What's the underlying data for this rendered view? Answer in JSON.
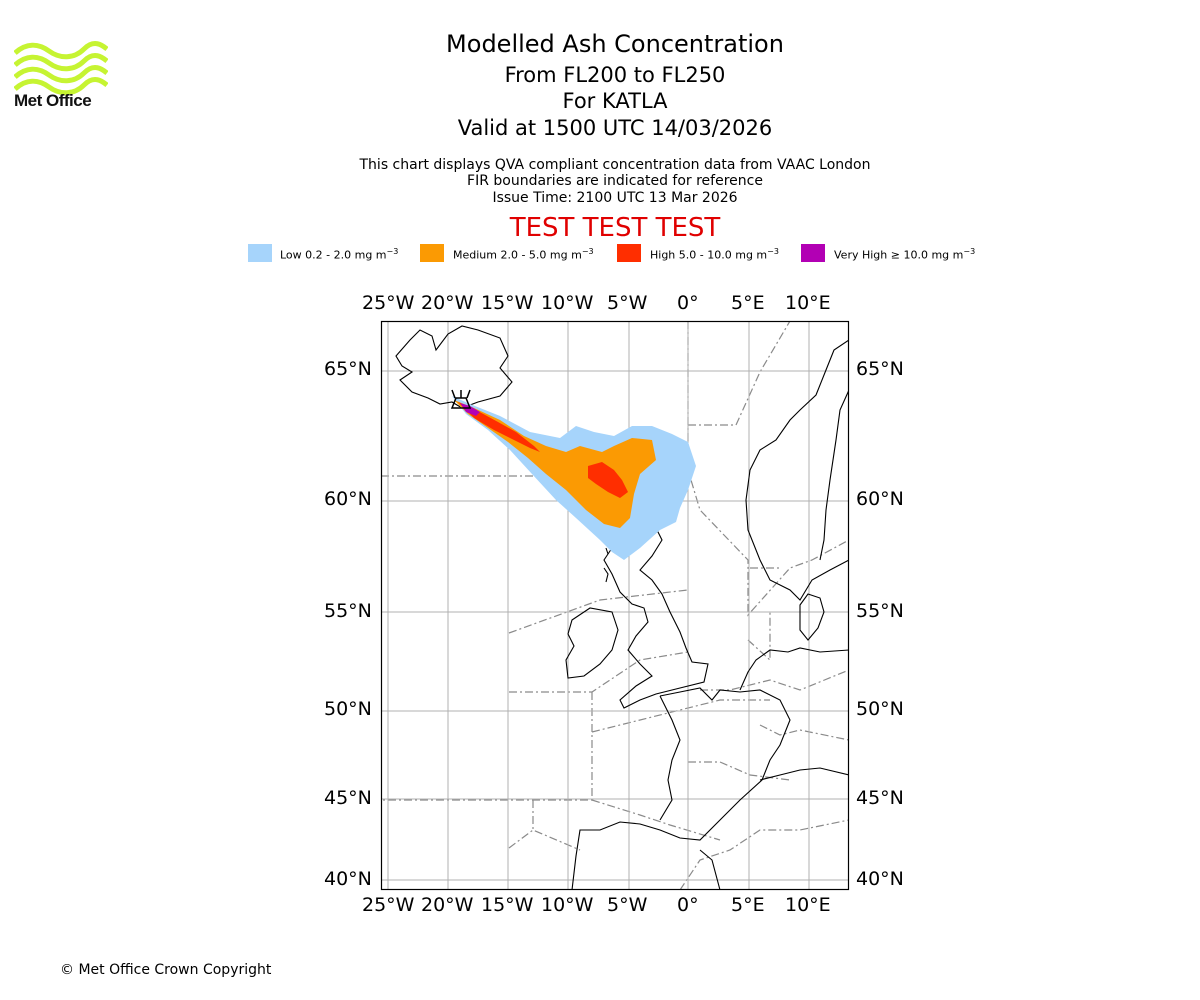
{
  "logo": {
    "text": "Met Office"
  },
  "title": {
    "main": "Modelled Ash Concentration",
    "levels": "From FL200 to FL250",
    "volcano": "For KATLA",
    "valid": "Valid at 1500 UTC 14/03/2026"
  },
  "description": {
    "line1": "This chart displays QVA compliant concentration data from VAAC London",
    "line2": "FIR boundaries are indicated for reference",
    "line3": "Issue Time: 2100 UTC 13 Mar 2026"
  },
  "test_banner": "TEST TEST TEST",
  "legend": [
    {
      "label": "Low 0.2 - 2.0 mg m",
      "color": "#a6d4fb"
    },
    {
      "label": "Medium 2.0 - 5.0 mg m",
      "color": "#fb9a03"
    },
    {
      "label": "High 5.0 - 10.0 mg m",
      "color": "#ff2e00"
    },
    {
      "label": "Very High  ≥  10.0 mg m",
      "color": "#b200b4"
    }
  ],
  "legend_unit_exp": "−3",
  "axes": {
    "lon_ticks": [
      "25°W",
      "20°W",
      "15°W",
      "10°W",
      "5°W",
      "0°",
      "5°E",
      "10°E"
    ],
    "lat_ticks": [
      "65°N",
      "60°N",
      "55°N",
      "50°N",
      "45°N",
      "40°N"
    ]
  },
  "copyright": "© Met Office Crown Copyright"
}
